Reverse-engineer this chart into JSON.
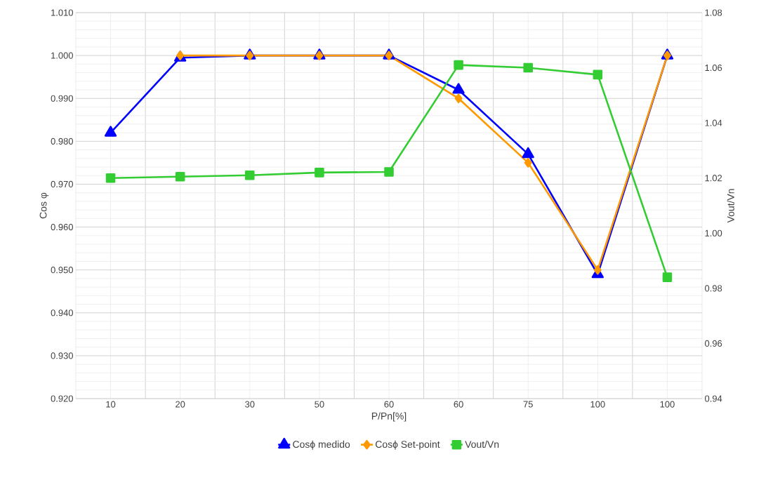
{
  "chart_data": {
    "type": "line",
    "xlabel": "P/Pn[%]",
    "ylabel": "Cos φ",
    "y2label": "Vout/Vn",
    "categories": [
      "10",
      "20",
      "30",
      "50",
      "60",
      "60",
      "75",
      "100",
      "100"
    ],
    "series": [
      {
        "name": "Cosϕ medido",
        "color": "#0000ff",
        "marker": "triangle",
        "values": [
          0.982,
          0.9995,
          1.0,
          1.0,
          1.0,
          0.992,
          0.977,
          0.949,
          1.0
        ]
      },
      {
        "name": "Cosϕ Set-point",
        "color": "#ff9900",
        "marker": "diamond",
        "values": [
          null,
          1.0,
          1.0,
          1.0,
          1.0,
          0.99,
          0.975,
          0.95,
          1.0
        ]
      },
      {
        "name": "Vout/Vn",
        "color": "#33cc33",
        "marker": "square",
        "axis": "y2",
        "values": [
          1.02,
          1.0205,
          1.021,
          1.022,
          1.0222,
          1.061,
          1.06,
          1.0575,
          0.984
        ]
      }
    ],
    "ylim": [
      0.92,
      1.01
    ],
    "yticks": [
      {
        "value": 0.92,
        "label": "0.920"
      },
      {
        "value": 0.93,
        "label": "0.930"
      },
      {
        "value": 0.94,
        "label": "0.940"
      },
      {
        "value": 0.95,
        "label": "0.950"
      },
      {
        "value": 0.96,
        "label": "0.960"
      },
      {
        "value": 0.97,
        "label": "0.970"
      },
      {
        "value": 0.98,
        "label": "0.980"
      },
      {
        "value": 0.99,
        "label": "0.990"
      },
      {
        "value": 1.0,
        "label": "1.000"
      },
      {
        "value": 1.01,
        "label": "1.010"
      }
    ],
    "y2lim": [
      0.94,
      1.08
    ],
    "y2ticks": [
      {
        "value": 0.94,
        "label": "0.94"
      },
      {
        "value": 0.96,
        "label": "0.96"
      },
      {
        "value": 0.98,
        "label": "0.98"
      },
      {
        "value": 1.0,
        "label": "1.00"
      },
      {
        "value": 1.02,
        "label": "1.02"
      },
      {
        "value": 1.04,
        "label": "1.04"
      },
      {
        "value": 1.06,
        "label": "1.06"
      },
      {
        "value": 1.08,
        "label": "1.08"
      }
    ],
    "grid": true,
    "legend": "bottom"
  }
}
